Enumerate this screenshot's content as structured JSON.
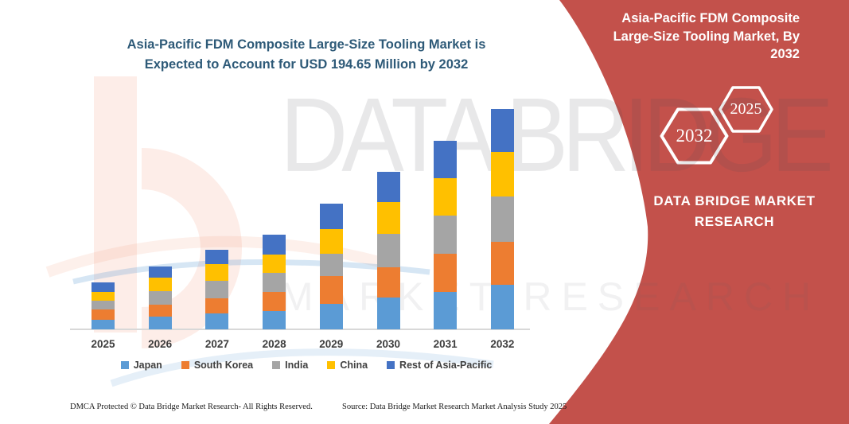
{
  "header": {
    "title_lines": [
      "Asia-Pacific FDM Composite Large-Size Tooling Market is",
      "Expected to Account for USD 194.65 Million by 2032"
    ],
    "title_color": "#2E5A78"
  },
  "chart_data": {
    "type": "bar",
    "stacked": true,
    "title": "Asia-Pacific FDM Composite Large-Size Tooling Market is Expected to Account for USD 194.65 Million by 2032",
    "unit": "USD Million",
    "categories": [
      "2025",
      "2026",
      "2027",
      "2028",
      "2029",
      "2030",
      "2031",
      "2032"
    ],
    "series": [
      {
        "name": "Japan",
        "color": "#5B9BD5",
        "values": [
          8.2,
          11.3,
          14.1,
          16.4,
          22.2,
          28.2,
          33.3,
          39.4
        ]
      },
      {
        "name": "South Korea",
        "color": "#ED7D31",
        "values": [
          9.4,
          10.6,
          13.6,
          16.4,
          24.6,
          27.0,
          33.6,
          38.0
        ]
      },
      {
        "name": "India",
        "color": "#A5A5A5",
        "values": [
          7.7,
          12.2,
          15.0,
          17.4,
          20.0,
          29.3,
          34.0,
          40.3
        ]
      },
      {
        "name": "China",
        "color": "#FFC000",
        "values": [
          8.0,
          11.3,
          14.8,
          16.0,
          22.2,
          28.2,
          32.9,
          38.9
        ]
      },
      {
        "name": "Rest of Asia-Pacific",
        "color": "#4472C4",
        "values": [
          8.4,
          9.9,
          12.9,
          17.6,
          22.3,
          26.3,
          32.8,
          38.05
        ]
      }
    ],
    "totals_by_year": [
      41.7,
      55.3,
      70.4,
      83.8,
      111.3,
      139.0,
      166.6,
      194.65
    ],
    "ylim": [
      0,
      200
    ],
    "grid": false,
    "legend_position": "bottom",
    "xlabel": "",
    "ylabel": ""
  },
  "right_panel": {
    "bg_color": "#C3514B",
    "title_lines": [
      "Asia-Pacific FDM Composite",
      "Large-Size Tooling Market, By",
      "2032"
    ],
    "hexagons": [
      {
        "label": "2032"
      },
      {
        "label": "2025"
      }
    ],
    "brand_lines": [
      "DATA BRIDGE MARKET",
      "RESEARCH"
    ]
  },
  "watermark": {
    "line1": "DATA BRIDGE",
    "line2": "MARKET RESEARCH"
  },
  "footer": {
    "left": "DMCA Protected © Data Bridge Market Research-  All Rights Reserved.",
    "right": "Source: Data Bridge Market Research  Market Analysis Study 2025"
  }
}
